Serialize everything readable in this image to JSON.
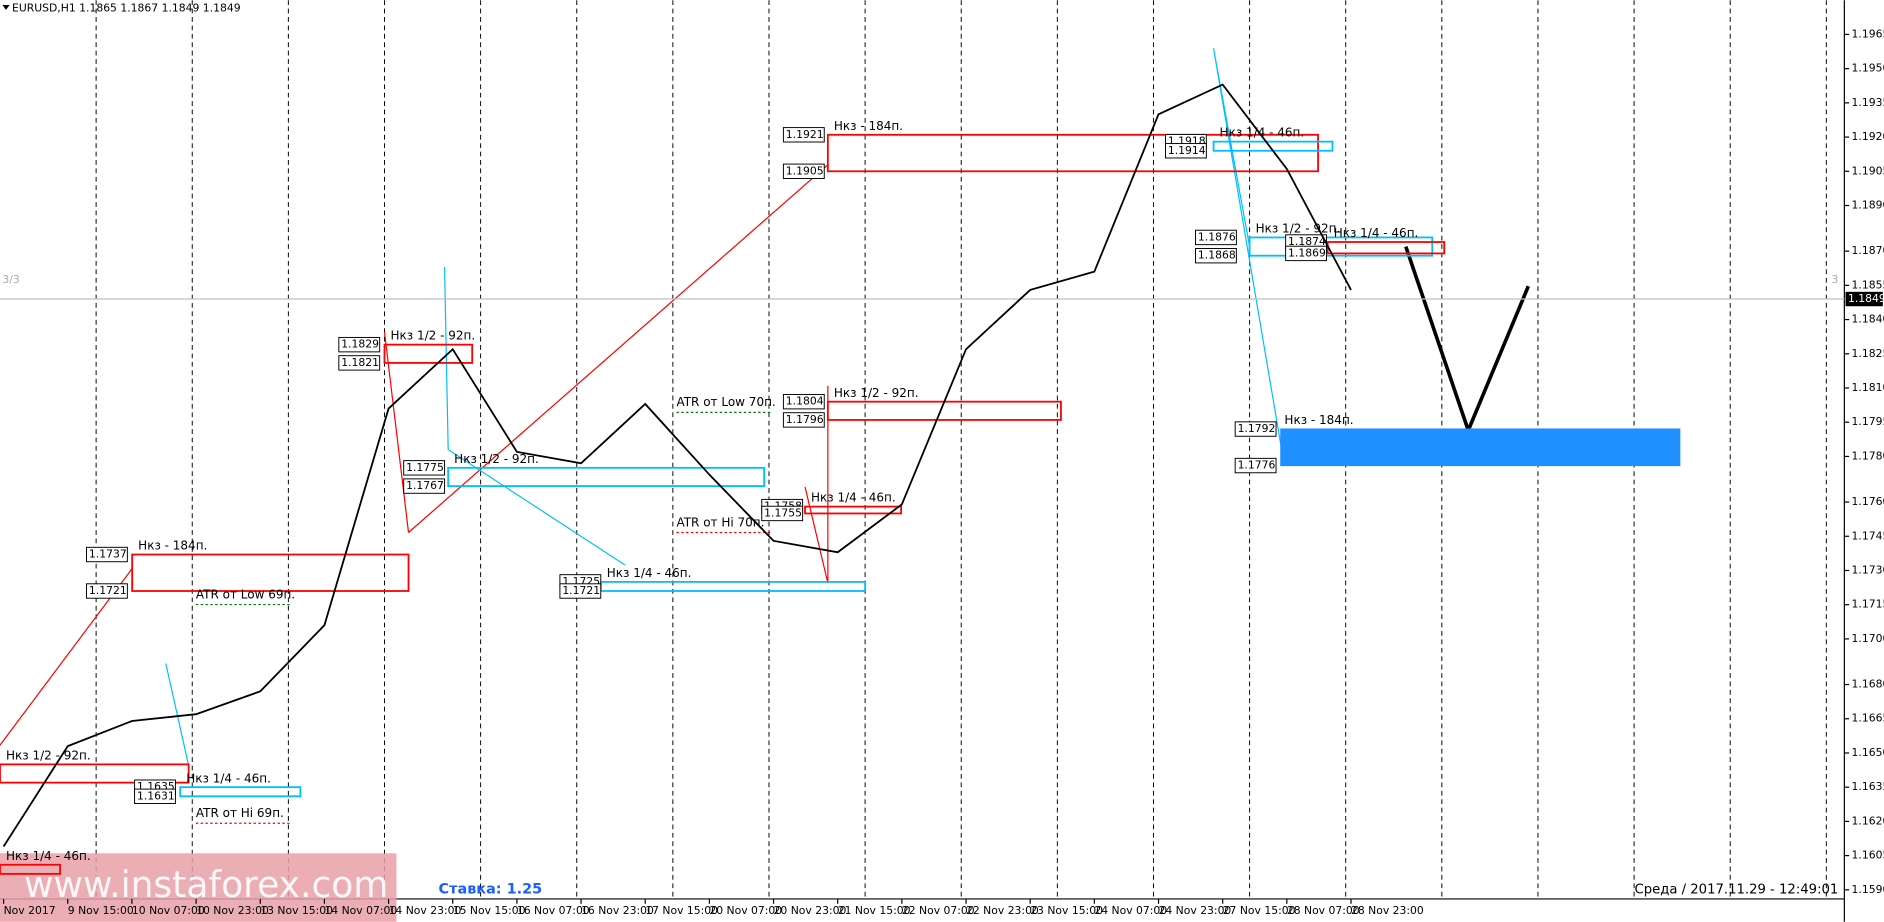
{
  "chart_data": {
    "type": "line",
    "title": "EURUSD,H1  1.1865 1.1867 1.1849 1.1849",
    "categories": [
      "Nov 2017",
      "9 Nov 15:00",
      "10 Nov 07:00",
      "10 Nov 23:00",
      "13 Nov 15:00",
      "14 Nov 07:00",
      "14 Nov 23:00",
      "15 Nov 15:00",
      "16 Nov 07:00",
      "16 Nov 23:00",
      "17 Nov 15:00",
      "20 Nov 07:00",
      "20 Nov 23:00",
      "21 Nov 15:00",
      "22 Nov 07:00",
      "22 Nov 23:00",
      "23 Nov 15:00",
      "24 Nov 07:00",
      "24 Nov 23:00",
      "27 Nov 15:00",
      "28 Nov 07:00",
      "28 Nov 23:00"
    ],
    "values": [
      1.1609,
      1.1653,
      1.1664,
      1.1667,
      1.1677,
      1.1706,
      1.1801,
      1.1827,
      1.1782,
      1.1777,
      1.1803,
      1.1772,
      1.1743,
      1.1738,
      1.1759,
      1.1827,
      1.1853,
      1.1861,
      1.193,
      1.1943,
      1.1906,
      1.1853
    ],
    "color": "#000000",
    "ylim": [
      1.198,
      1.1586
    ],
    "yticks": [
      1.1965,
      {
        "value": 1.195,
        "label": "1.1950"
      },
      1.1935,
      {
        "value": 1.192,
        "label": "1.1920"
      },
      1.1905,
      {
        "value": 1.189,
        "label": "1.1890"
      },
      {
        "value": 1.187,
        "label": "1.1870"
      },
      1.1855,
      {
        "value": 1.184,
        "label": "1.1840"
      },
      1.1825,
      {
        "value": 1.181,
        "label": "1.1810"
      },
      1.1795,
      {
        "value": 1.178,
        "label": "1.1780"
      },
      {
        "value": 1.176,
        "label": "1.1760"
      },
      1.1745,
      {
        "value": 1.173,
        "label": "1.1730"
      },
      1.1715,
      {
        "value": 1.17,
        "label": "1.1700"
      },
      {
        "value": 1.168,
        "label": "1.1680"
      },
      1.1665,
      {
        "value": 1.165,
        "label": "1.1650"
      },
      1.1635,
      {
        "value": 1.162,
        "label": "1.1620"
      },
      1.1605,
      {
        "value": 1.159,
        "label": "1.1590"
      }
    ],
    "current_price": 1.1849,
    "zones": [
      {
        "label": "Нкз - 184п.",
        "top": 1.1921,
        "bottom": 1.1905,
        "color": "#ff0000",
        "tagged": true
      },
      {
        "label": "Нкз 1/2 - 92п.",
        "top": 1.1829,
        "bottom": 1.1821,
        "color": "#ff0000",
        "tagged": true
      },
      {
        "label": "Нкз 1/2 - 92п.",
        "top": 1.1804,
        "bottom": 1.1796,
        "color": "#ff0000",
        "tagged": true
      },
      {
        "label": "Нкз - 184п.",
        "top": 1.1737,
        "bottom": 1.1721,
        "color": "#ff0000",
        "tagged": true
      },
      {
        "label": "Нкз 1/4 - 46п.",
        "top": 1.1758,
        "bottom": 1.1755,
        "color": "#ff0000",
        "tagged": true
      },
      {
        "label": "Нкз 1/2 - 92п.",
        "top": 1.1775,
        "bottom": 1.1767,
        "color": "#00bfff",
        "tagged": true
      },
      {
        "label": "Нкз 1/4 - 46п.",
        "top": 1.1725,
        "bottom": 1.1721,
        "color": "#00bfff",
        "tagged": true
      },
      {
        "label": "Нкз 1/2 - 92п.",
        "top": 1.1645,
        "bottom": 1.1637,
        "color": "#ff0000",
        "tagged": false
      },
      {
        "label": "Нкз 1/4 - 46п.",
        "top": 1.1635,
        "bottom": 1.1631,
        "color": "#00bfff",
        "tagged": true
      },
      {
        "label": "Нкз 1/4 - 46п.",
        "top": 1.1601,
        "bottom": 1.1597,
        "color": "#ff0000",
        "tagged": false
      },
      {
        "label": "Нкз 1/4 - 46п.",
        "top": 1.1918,
        "bottom": 1.1914,
        "color": "#00bfff",
        "tagged": true
      },
      {
        "label": "Нкз 1/2 - 92п.",
        "top": 1.1876,
        "bottom": 1.1868,
        "color": "#00bfff",
        "tagged": true
      },
      {
        "label": "Нкз 1/4 - 46п.",
        "top": 1.1874,
        "bottom": 1.1869,
        "color": "#ff0000",
        "tagged": true
      },
      {
        "label": "Нкз - 184п.",
        "top": 1.1792,
        "bottom": 1.1776,
        "color": "#1e90ff",
        "tagged": true
      }
    ],
    "atr_labels": [
      {
        "text": "ATR от Low 69п.",
        "color": "#008000"
      },
      {
        "text": "ATR от Hi 69п.",
        "color": "#ff0000"
      },
      {
        "text": "ATR от Low 70п.",
        "color": "#008000"
      },
      {
        "text": "ATR от Hi 70п.",
        "color": "#ff0000"
      }
    ],
    "rate": "Ставка: 1.25",
    "timestamp": "Среда  /  2017.11.29  -  12:49:01",
    "watermark": "www.instaforex.com",
    "left_marker": "3/3",
    "right_marker": "3"
  }
}
